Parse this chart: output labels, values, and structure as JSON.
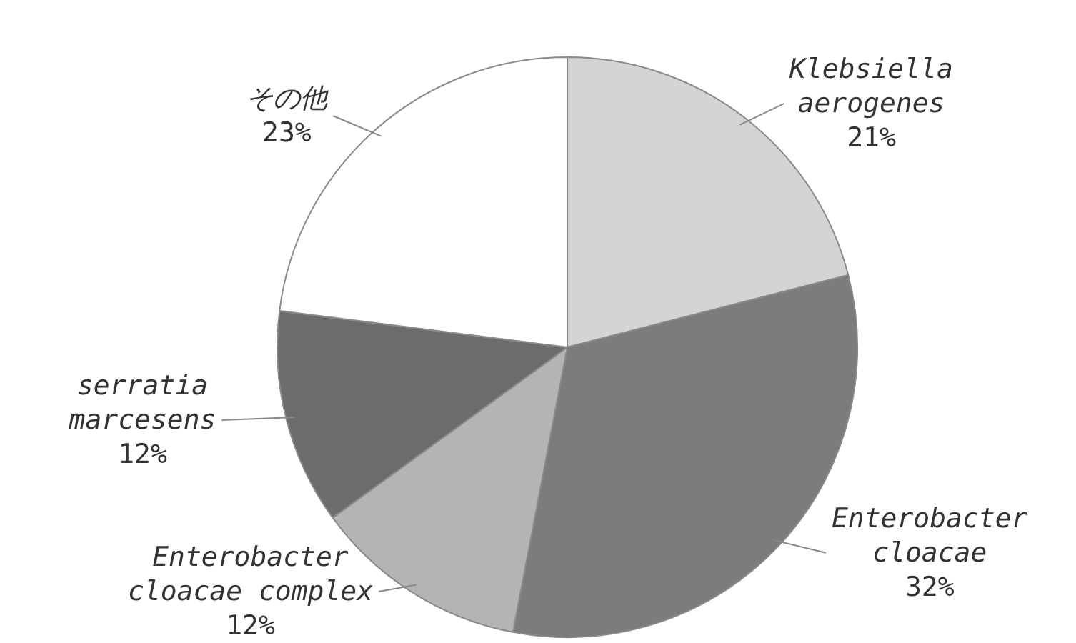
{
  "chart_data": {
    "type": "pie",
    "categories": [
      "Klebsiella aerogenes",
      "Enterobacter cloacae",
      "Enterobacter cloacae complex",
      "serratia marcesens",
      "その他"
    ],
    "values": [
      21,
      32,
      12,
      12,
      23
    ],
    "value_labels": [
      "21%",
      "32%",
      "12%",
      "12%",
      "23%"
    ],
    "colors": [
      "#d4d4d4",
      "#7c7c7c",
      "#b4b4b4",
      "#6c6c6c",
      "#ffffff"
    ],
    "legend": false
  }
}
